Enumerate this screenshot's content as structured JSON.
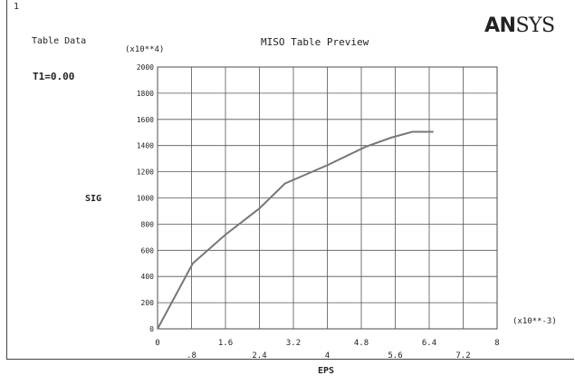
{
  "window": {
    "number": "1",
    "table_label": "Table Data",
    "temperature_label": "T1=0.00"
  },
  "logo": {
    "part1": "AN",
    "part2": "SYS"
  },
  "chart_data": {
    "type": "line",
    "title": "MISO Table Preview",
    "xlabel": "EPS",
    "ylabel": "SIG",
    "x_multiplier": "(x10**-3)",
    "y_multiplier": "(x10**4)",
    "xlim": [
      0,
      8
    ],
    "ylim": [
      0,
      2000
    ],
    "x_ticks": [
      0,
      0.8,
      1.6,
      2.4,
      3.2,
      4,
      4.8,
      5.6,
      6.4,
      7.2,
      8
    ],
    "x_tick_labels": [
      "0",
      ".8",
      "1.6",
      "2.4",
      "3.2",
      "4",
      "4.8",
      "5.6",
      "6.4",
      "7.2",
      "8"
    ],
    "y_ticks": [
      0,
      200,
      400,
      600,
      800,
      1000,
      1200,
      1400,
      1600,
      1800,
      2000
    ],
    "y_tick_labels": [
      "0",
      "200",
      "400",
      "600",
      "800",
      "1000",
      "1200",
      "1400",
      "1600",
      "1800",
      "2000"
    ],
    "grid": true,
    "series": [
      {
        "x": [
          0,
          0.83,
          1.6,
          2.4,
          3.0,
          4.0,
          4.9,
          5.5,
          6.0,
          6.5
        ],
        "y": [
          0,
          500,
          720,
          920,
          1110,
          1250,
          1390,
          1460,
          1505,
          1505
        ]
      }
    ]
  }
}
